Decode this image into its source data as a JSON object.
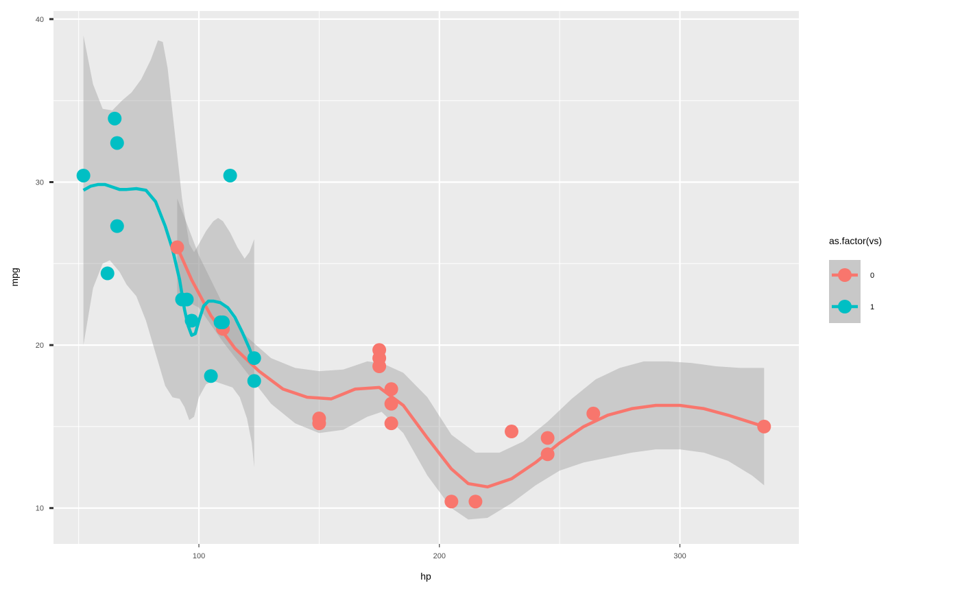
{
  "chart_data": {
    "type": "scatter",
    "title": "",
    "xlabel": "hp",
    "ylabel": "mpg",
    "xlim": [
      39.55,
      349.45
    ],
    "ylim": [
      7.8,
      40.5
    ],
    "x_ticks": [
      100,
      200,
      300
    ],
    "y_ticks": [
      10,
      20,
      30,
      40
    ],
    "grid": true,
    "legend": {
      "title": "as.factor(vs)",
      "position": "right"
    },
    "series": [
      {
        "name": "0",
        "color": "#F8766D",
        "points": [
          [
            110,
            21.0
          ],
          [
            110,
            21.0
          ],
          [
            175,
            18.7
          ],
          [
            245,
            14.3
          ],
          [
            180,
            16.4
          ],
          [
            180,
            17.3
          ],
          [
            180,
            15.2
          ],
          [
            205,
            10.4
          ],
          [
            215,
            10.4
          ],
          [
            230,
            14.7
          ],
          [
            150,
            15.5
          ],
          [
            150,
            15.2
          ],
          [
            245,
            13.3
          ],
          [
            175,
            19.2
          ],
          [
            91,
            26.0
          ],
          [
            264,
            15.8
          ],
          [
            175,
            19.7
          ],
          [
            335,
            15.0
          ]
        ],
        "smooth": [
          [
            91,
            26.0
          ],
          [
            97,
            24.0
          ],
          [
            105,
            21.8
          ],
          [
            115,
            19.8
          ],
          [
            125,
            18.4
          ],
          [
            135,
            17.3
          ],
          [
            145,
            16.8
          ],
          [
            155,
            16.7
          ],
          [
            165,
            17.3
          ],
          [
            175,
            17.4
          ],
          [
            185,
            16.3
          ],
          [
            195,
            14.3
          ],
          [
            205,
            12.4
          ],
          [
            212,
            11.5
          ],
          [
            220,
            11.3
          ],
          [
            230,
            11.8
          ],
          [
            240,
            12.8
          ],
          [
            250,
            14.0
          ],
          [
            260,
            15.0
          ],
          [
            270,
            15.7
          ],
          [
            280,
            16.1
          ],
          [
            290,
            16.3
          ],
          [
            300,
            16.3
          ],
          [
            310,
            16.1
          ],
          [
            320,
            15.7
          ],
          [
            335,
            15.0
          ]
        ],
        "band_upper": [
          [
            91,
            29.0
          ],
          [
            100,
            25.5
          ],
          [
            110,
            22.5
          ],
          [
            120,
            20.5
          ],
          [
            130,
            19.2
          ],
          [
            140,
            18.6
          ],
          [
            150,
            18.4
          ],
          [
            160,
            18.5
          ],
          [
            170,
            19.0
          ],
          [
            176,
            18.9
          ],
          [
            185,
            18.3
          ],
          [
            195,
            16.8
          ],
          [
            205,
            14.5
          ],
          [
            215,
            13.4
          ],
          [
            225,
            13.4
          ],
          [
            235,
            14.1
          ],
          [
            245,
            15.3
          ],
          [
            255,
            16.7
          ],
          [
            265,
            17.9
          ],
          [
            275,
            18.6
          ],
          [
            285,
            19.0
          ],
          [
            295,
            19.0
          ],
          [
            305,
            18.9
          ],
          [
            315,
            18.7
          ],
          [
            325,
            18.6
          ],
          [
            335,
            18.6
          ]
        ],
        "band_lower": [
          [
            91,
            23.0
          ],
          [
            100,
            22.3
          ],
          [
            110,
            20.2
          ],
          [
            120,
            18.3
          ],
          [
            130,
            16.4
          ],
          [
            140,
            15.2
          ],
          [
            150,
            14.6
          ],
          [
            160,
            14.8
          ],
          [
            170,
            15.6
          ],
          [
            176,
            15.9
          ],
          [
            185,
            14.6
          ],
          [
            195,
            12.0
          ],
          [
            205,
            10.0
          ],
          [
            212,
            9.3
          ],
          [
            220,
            9.4
          ],
          [
            230,
            10.3
          ],
          [
            240,
            11.4
          ],
          [
            250,
            12.3
          ],
          [
            260,
            12.8
          ],
          [
            270,
            13.1
          ],
          [
            280,
            13.4
          ],
          [
            290,
            13.6
          ],
          [
            300,
            13.6
          ],
          [
            310,
            13.4
          ],
          [
            320,
            12.9
          ],
          [
            330,
            12.0
          ],
          [
            335,
            11.4
          ]
        ]
      },
      {
        "name": "1",
        "color": "#00BFC4",
        "points": [
          [
            93,
            22.8
          ],
          [
            110,
            21.4
          ],
          [
            105,
            18.1
          ],
          [
            62,
            24.4
          ],
          [
            95,
            22.8
          ],
          [
            123,
            19.2
          ],
          [
            123,
            17.8
          ],
          [
            66,
            32.4
          ],
          [
            52,
            30.4
          ],
          [
            65,
            33.9
          ],
          [
            97,
            21.5
          ],
          [
            66,
            27.3
          ],
          [
            113,
            30.4
          ],
          [
            109,
            21.4
          ]
        ],
        "smooth": [
          [
            52,
            29.5
          ],
          [
            55,
            29.75
          ],
          [
            58,
            29.85
          ],
          [
            61,
            29.85
          ],
          [
            64,
            29.7
          ],
          [
            67,
            29.55
          ],
          [
            70,
            29.55
          ],
          [
            74,
            29.6
          ],
          [
            78,
            29.5
          ],
          [
            82,
            28.8
          ],
          [
            86,
            27.3
          ],
          [
            89,
            25.9
          ],
          [
            92,
            24.0
          ],
          [
            94,
            22.2
          ],
          [
            95.5,
            21.2
          ],
          [
            97,
            20.6
          ],
          [
            98.5,
            20.7
          ],
          [
            100,
            21.5
          ],
          [
            102,
            22.4
          ],
          [
            104,
            22.7
          ],
          [
            106,
            22.7
          ],
          [
            109,
            22.6
          ],
          [
            112,
            22.3
          ],
          [
            115,
            21.7
          ],
          [
            118,
            20.8
          ],
          [
            121,
            19.8
          ],
          [
            123,
            19.0
          ]
        ],
        "band_upper": [
          [
            52,
            39.0
          ],
          [
            56,
            36.0
          ],
          [
            60,
            34.5
          ],
          [
            64,
            34.4
          ],
          [
            68,
            35.0
          ],
          [
            72,
            35.5
          ],
          [
            76,
            36.3
          ],
          [
            80,
            37.5
          ],
          [
            83,
            38.7
          ],
          [
            85,
            38.6
          ],
          [
            87,
            37.0
          ],
          [
            90,
            33.0
          ],
          [
            93,
            29.0
          ],
          [
            96,
            26.2
          ],
          [
            98,
            25.7
          ],
          [
            100,
            26.2
          ],
          [
            103,
            27.0
          ],
          [
            106,
            27.6
          ],
          [
            108,
            27.8
          ],
          [
            110,
            27.6
          ],
          [
            113,
            26.9
          ],
          [
            116,
            26.0
          ],
          [
            119,
            25.3
          ],
          [
            121,
            25.7
          ],
          [
            123,
            26.5
          ]
        ],
        "band_lower": [
          [
            52,
            20.0
          ],
          [
            56,
            23.5
          ],
          [
            60,
            25.0
          ],
          [
            63,
            25.2
          ],
          [
            67,
            24.5
          ],
          [
            70,
            23.7
          ],
          [
            74,
            23.0
          ],
          [
            78,
            21.5
          ],
          [
            82,
            19.5
          ],
          [
            86,
            17.5
          ],
          [
            89,
            16.8
          ],
          [
            92,
            16.7
          ],
          [
            94,
            16.2
          ],
          [
            96,
            15.4
          ],
          [
            98,
            15.6
          ],
          [
            100,
            16.8
          ],
          [
            103,
            17.6
          ],
          [
            106,
            17.8
          ],
          [
            110,
            17.6
          ],
          [
            114,
            17.4
          ],
          [
            117,
            16.8
          ],
          [
            120,
            15.5
          ],
          [
            122,
            14.0
          ],
          [
            123,
            12.5
          ]
        ]
      }
    ]
  }
}
